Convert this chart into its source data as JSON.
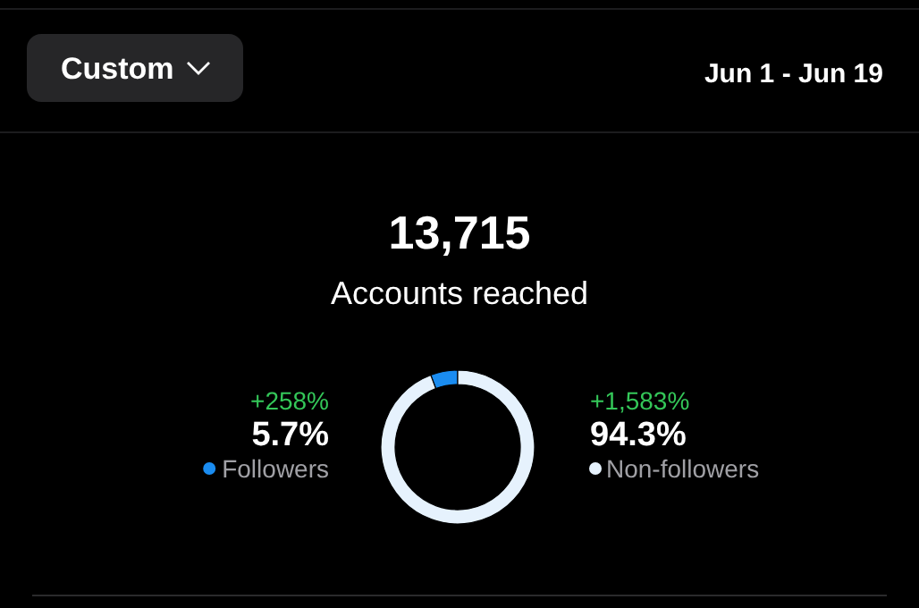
{
  "chart_data": {
    "type": "donut",
    "title": "13,715",
    "subtitle": "Accounts reached",
    "categories": [
      "Followers",
      "Non-followers"
    ],
    "values": [
      5.7,
      94.3
    ],
    "colors": [
      "#1a8cf0",
      "#e6f2fd"
    ],
    "value_labels": [
      "5.7%",
      "94.3%"
    ],
    "legend": "bottom",
    "annotations": [
      "Custom",
      "Jun 1 - Jun 19",
      "+258%",
      "+1,583%"
    ]
  }
}
